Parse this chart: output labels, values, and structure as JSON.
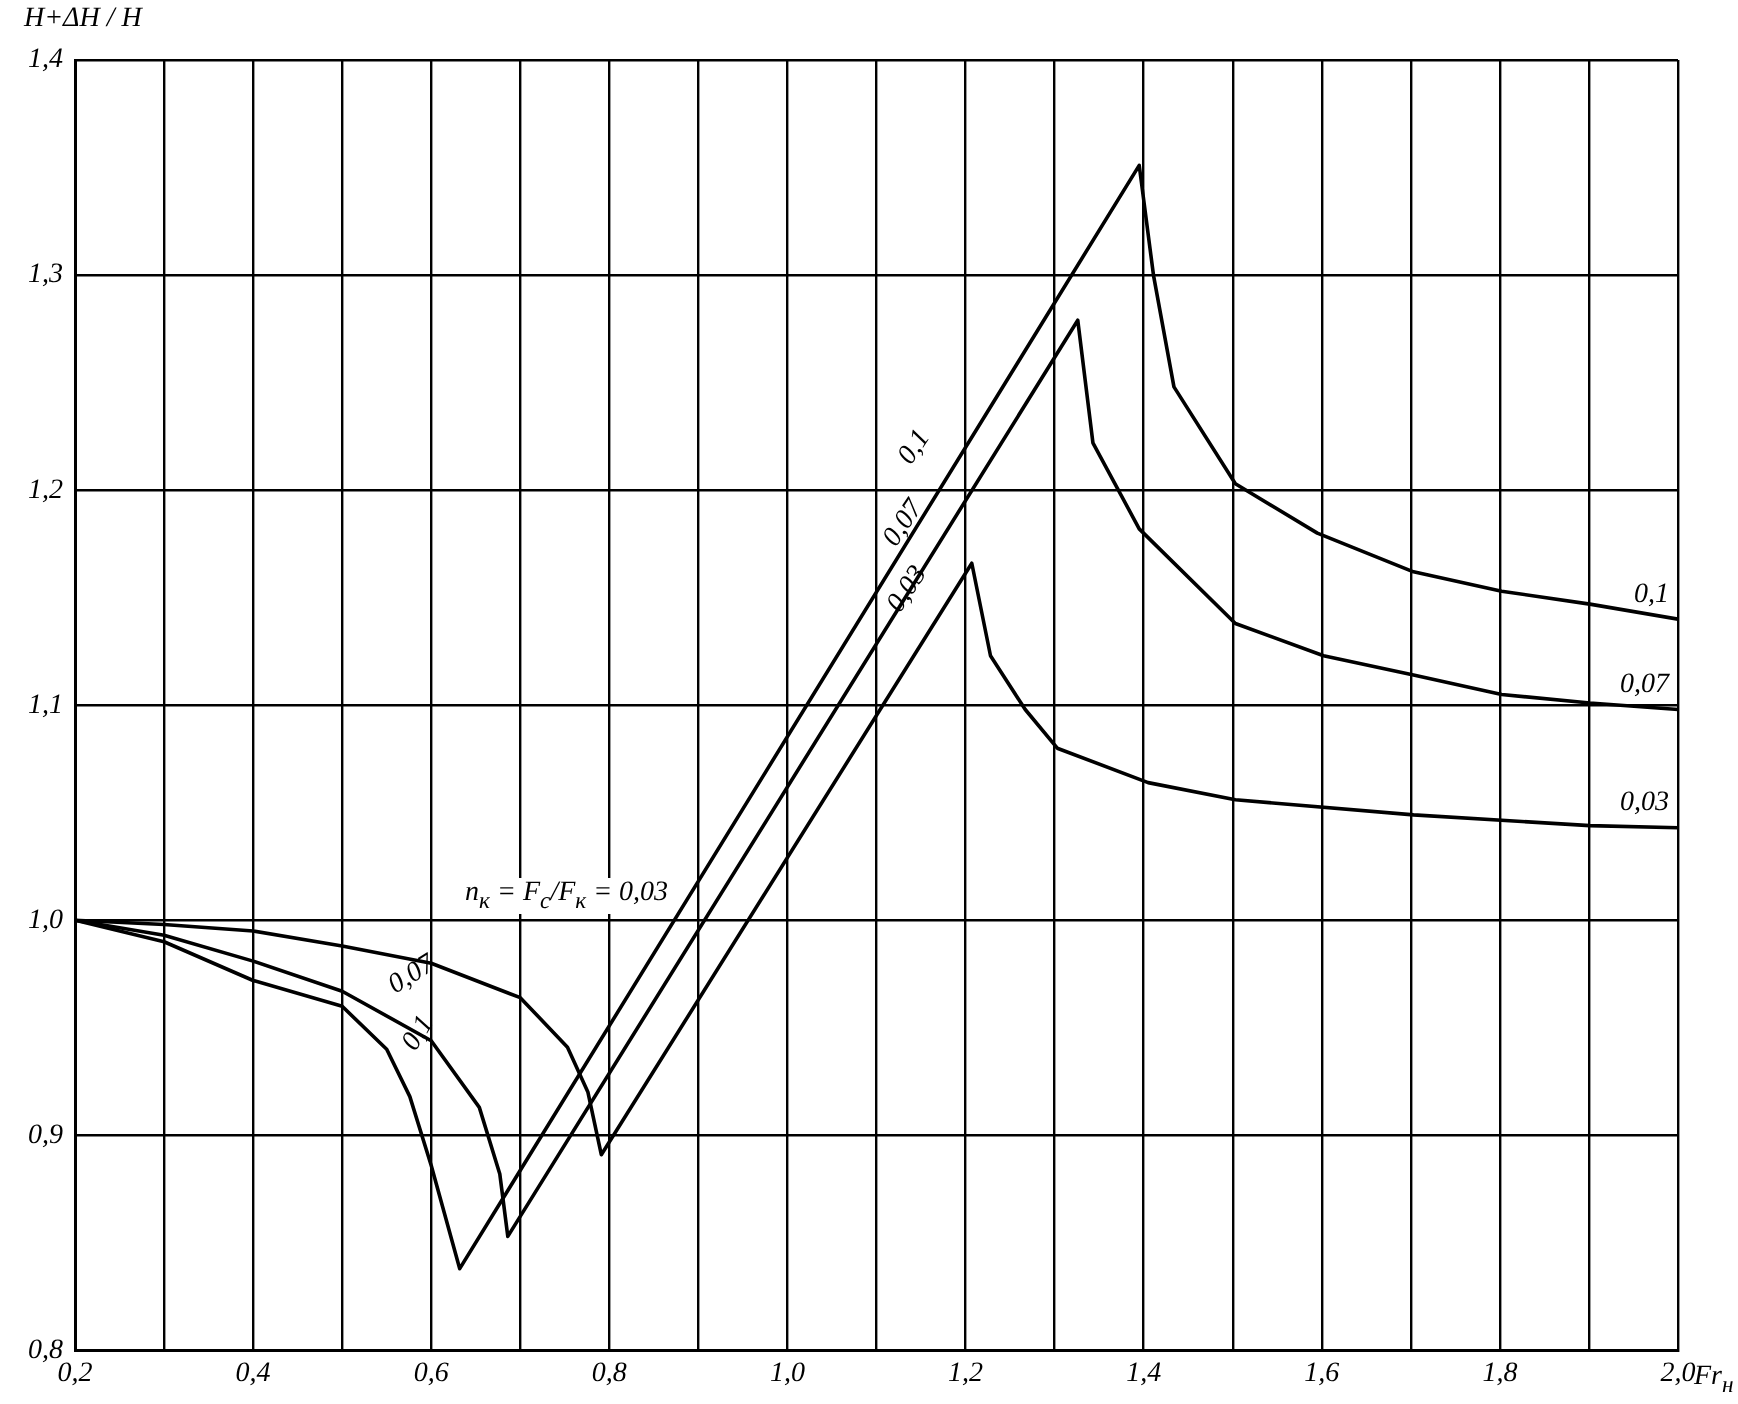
{
  "chart_data": {
    "type": "line",
    "ylabel": "H+ΔH / H",
    "xlabel": "Fr$_{н}$",
    "xlim": [
      0.2,
      2.0
    ],
    "ylim": [
      0.8,
      1.4
    ],
    "xticks": [
      {
        "value": 0.2,
        "label": "0,2"
      },
      {
        "value": 0.3,
        "label": null
      },
      {
        "value": 0.4,
        "label": "0,4"
      },
      {
        "value": 0.5,
        "label": null
      },
      {
        "value": 0.6,
        "label": "0,6"
      },
      {
        "value": 0.7,
        "label": null
      },
      {
        "value": 0.8,
        "label": "0,8"
      },
      {
        "value": 0.9,
        "label": null
      },
      {
        "value": 1.0,
        "label": "1,0"
      },
      {
        "value": 1.1,
        "label": null
      },
      {
        "value": 1.2,
        "label": "1,2"
      },
      {
        "value": 1.3,
        "label": null
      },
      {
        "value": 1.4,
        "label": "1,4"
      },
      {
        "value": 1.5,
        "label": null
      },
      {
        "value": 1.6,
        "label": "1,6"
      },
      {
        "value": 1.7,
        "label": null
      },
      {
        "value": 1.8,
        "label": "1,8"
      },
      {
        "value": 1.9,
        "label": null
      },
      {
        "value": 2.0,
        "label": "2,0"
      }
    ],
    "yticks": [
      {
        "value": 0.8,
        "label": "0,8"
      },
      {
        "value": 0.9,
        "label": "0,9"
      },
      {
        "value": 1.0,
        "label": "1,0"
      },
      {
        "value": 1.1,
        "label": "1,1"
      },
      {
        "value": 1.2,
        "label": "1,2"
      },
      {
        "value": 1.3,
        "label": "1,3"
      },
      {
        "value": 1.4,
        "label": "1,4"
      }
    ],
    "grid": true,
    "legend": false,
    "marker": "none",
    "line_style": "solid",
    "series": [
      {
        "name": "0,1",
        "color": "#000000",
        "x": [
          0.2,
          0.3,
          0.4,
          0.5,
          0.55,
          0.576,
          0.6,
          0.632,
          1.395,
          1.411,
          1.434,
          1.503,
          1.595,
          1.703,
          1.802,
          1.901,
          2.0
        ],
        "values": [
          1.0,
          0.99,
          0.972,
          0.96,
          0.94,
          0.918,
          0.886,
          0.838,
          1.351,
          1.3,
          1.248,
          1.203,
          1.18,
          1.162,
          1.153,
          1.147,
          1.14
        ]
      },
      {
        "name": "0,07",
        "color": "#000000",
        "x": [
          0.2,
          0.3,
          0.4,
          0.5,
          0.6,
          0.654,
          0.677,
          0.686,
          1.326,
          1.343,
          1.395,
          1.503,
          1.602,
          1.703,
          1.802,
          1.901,
          2.0
        ],
        "values": [
          1.0,
          0.993,
          0.981,
          0.967,
          0.944,
          0.913,
          0.882,
          0.853,
          1.279,
          1.222,
          1.182,
          1.138,
          1.123,
          1.114,
          1.105,
          1.101,
          1.098
        ]
      },
      {
        "name": "0,03",
        "color": "#000000",
        "x": [
          0.2,
          0.3,
          0.4,
          0.5,
          0.6,
          0.7,
          0.753,
          0.776,
          0.791,
          1.207,
          1.228,
          1.267,
          1.303,
          1.405,
          1.503,
          1.703,
          1.901,
          2.0
        ],
        "values": [
          1.0,
          0.998,
          0.995,
          0.988,
          0.98,
          0.964,
          0.941,
          0.92,
          0.891,
          1.166,
          1.123,
          1.098,
          1.08,
          1.064,
          1.056,
          1.049,
          1.044,
          1.043
        ]
      }
    ],
    "annotations": [
      "0,1",
      "0,07",
      "0,03",
      "0,07",
      "0,1",
      "n$_{к}$ = F$_{с}$/F$_{к}$ = 0,03"
    ]
  }
}
